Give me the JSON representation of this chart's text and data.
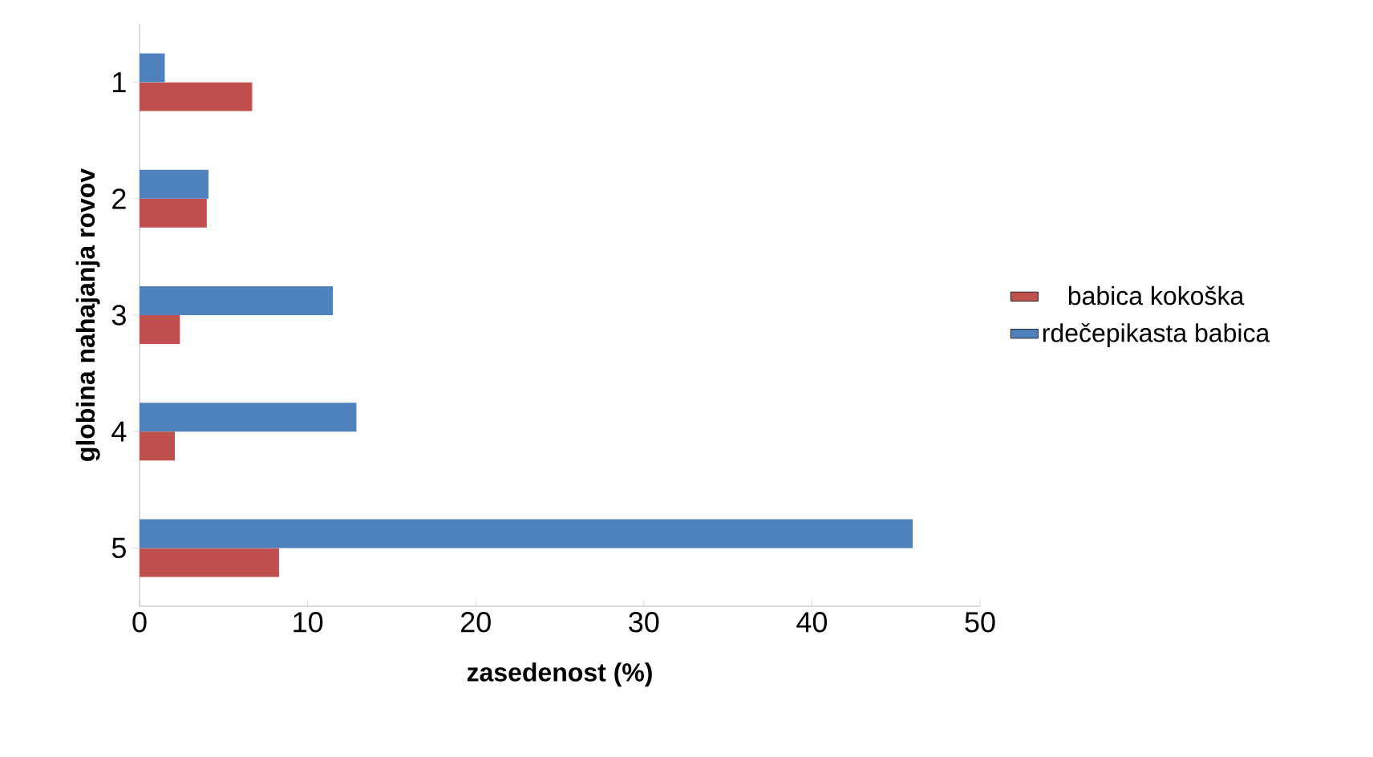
{
  "chart_data": {
    "type": "bar",
    "orientation": "horizontal",
    "xlabel": "zasedenost (%)",
    "ylabel": "globina nahajanja rovov",
    "categories": [
      "1",
      "2",
      "3",
      "4",
      "5"
    ],
    "series": [
      {
        "name": "babica kokoška",
        "color": "#c0504d",
        "values": [
          6.7,
          4.0,
          2.4,
          2.1,
          8.3
        ]
      },
      {
        "name": "rdečepikasta babica",
        "color": "#4f81bd",
        "values": [
          1.5,
          4.1,
          11.5,
          12.9,
          46.0
        ]
      }
    ],
    "xlim": [
      0,
      50
    ],
    "xticks": [
      0,
      10,
      20,
      30,
      40,
      50
    ],
    "legend": "right"
  }
}
